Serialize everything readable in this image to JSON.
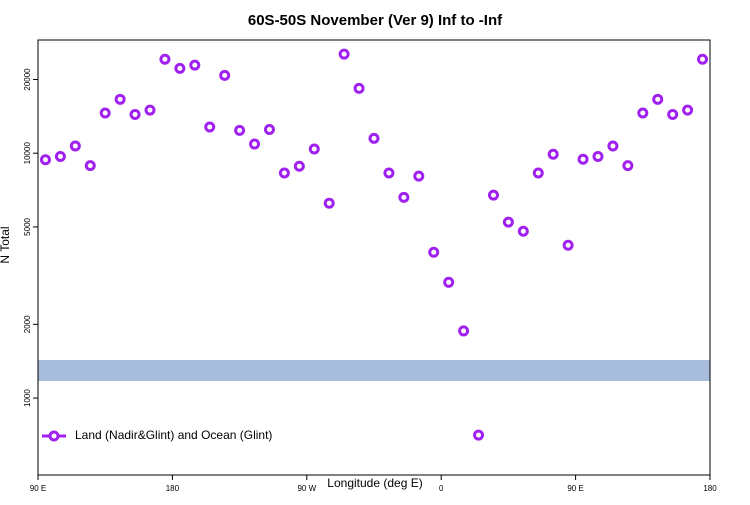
{
  "chart_data": {
    "type": "scatter",
    "title": "60S-50S November (Ver 9)   Inf to -Inf",
    "x_label": "Longitude (deg E)",
    "y_label": "N Total",
    "log_y": true,
    "legend": "bottom-left",
    "xlim": [
      90,
      540
    ],
    "ylim": [
      485,
      29000
    ],
    "xticks": [
      {
        "value": 90,
        "label": "90 E"
      },
      {
        "value": 180,
        "label": "180"
      },
      {
        "value": 270,
        "label": "90 W"
      },
      {
        "value": 360,
        "label": "0"
      },
      {
        "value": 450,
        "label": "90 E"
      },
      {
        "value": 540,
        "label": "180"
      }
    ],
    "yticks": [
      1000,
      2000,
      5000,
      10000,
      20000
    ],
    "series": [
      {
        "name": "Land (Nadir&Glint) and Ocean (Glint)",
        "color": "#a020f0",
        "x": [
          95,
          105,
          115,
          125,
          135,
          145,
          155,
          165,
          175,
          185,
          195,
          205,
          215,
          225,
          235,
          245,
          255,
          265,
          275,
          285,
          295,
          305,
          315,
          325,
          335,
          345,
          355,
          365,
          375,
          385,
          395,
          405,
          415,
          425,
          435,
          445,
          455,
          465,
          475,
          485,
          495,
          505,
          515,
          525,
          535
        ],
        "values": [
          9400,
          9700,
          10700,
          8900,
          14600,
          16600,
          14400,
          15000,
          24200,
          22200,
          22900,
          12800,
          20800,
          12400,
          10900,
          12500,
          8300,
          8850,
          10400,
          6250,
          25400,
          18400,
          11500,
          8300,
          6600,
          8060,
          3940,
          2970,
          1880,
          706,
          6740,
          5230,
          4800,
          8300,
          9900,
          4210,
          9450,
          9700,
          10700,
          8900,
          14600,
          16600,
          14400,
          15000,
          24200
        ]
      }
    ]
  }
}
